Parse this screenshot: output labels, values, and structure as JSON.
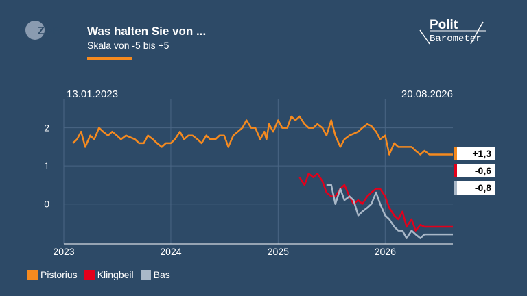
{
  "header": {
    "title": "Was halten Sie von ...",
    "subtitle": "Skala von -5 bis +5",
    "logo_left": "ZDF",
    "logo_right_top": "Polit",
    "logo_right_bottom": "Barometer"
  },
  "colors": {
    "background": "#2d4a67",
    "grid": "#4a6684",
    "pistorius": "#f58a1f",
    "klingbeil": "#e3001b",
    "bas": "#a9b8c8"
  },
  "chart_data": {
    "type": "line",
    "date_start_label": "13.01.2023",
    "date_end_label": "20.08.2026",
    "xlim": [
      "2023-01-01",
      "2026-08-20"
    ],
    "x_ticks": [
      "2023",
      "2024",
      "2025",
      "2026"
    ],
    "x_tick_dates": [
      "2023-01-01",
      "2024-01-01",
      "2025-01-01",
      "2026-01-01"
    ],
    "ylim": [
      -1.05,
      2.75
    ],
    "y_ticks": [
      "2",
      "1",
      "0"
    ],
    "y_tick_values": [
      2,
      1,
      0
    ],
    "grid": true,
    "legend_position": "bottom-left",
    "series": [
      {
        "name": "Pistorius",
        "color": "#f58a1f",
        "end_label": "+1,3",
        "points": [
          [
            "2023-02-01",
            1.6
          ],
          [
            "2023-02-15",
            1.7
          ],
          [
            "2023-03-01",
            1.9
          ],
          [
            "2023-03-15",
            1.5
          ],
          [
            "2023-04-01",
            1.8
          ],
          [
            "2023-04-15",
            1.7
          ],
          [
            "2023-05-01",
            2.0
          ],
          [
            "2023-05-15",
            1.9
          ],
          [
            "2023-06-01",
            1.8
          ],
          [
            "2023-06-15",
            1.9
          ],
          [
            "2023-07-01",
            1.8
          ],
          [
            "2023-07-15",
            1.7
          ],
          [
            "2023-08-01",
            1.8
          ],
          [
            "2023-09-01",
            1.7
          ],
          [
            "2023-09-15",
            1.6
          ],
          [
            "2023-10-01",
            1.6
          ],
          [
            "2023-10-15",
            1.8
          ],
          [
            "2023-11-01",
            1.7
          ],
          [
            "2023-11-15",
            1.6
          ],
          [
            "2023-12-01",
            1.5
          ],
          [
            "2023-12-15",
            1.6
          ],
          [
            "2024-01-01",
            1.6
          ],
          [
            "2024-01-15",
            1.7
          ],
          [
            "2024-02-01",
            1.9
          ],
          [
            "2024-02-15",
            1.7
          ],
          [
            "2024-03-01",
            1.8
          ],
          [
            "2024-03-15",
            1.8
          ],
          [
            "2024-04-01",
            1.7
          ],
          [
            "2024-04-15",
            1.6
          ],
          [
            "2024-05-01",
            1.8
          ],
          [
            "2024-05-15",
            1.7
          ],
          [
            "2024-06-01",
            1.7
          ],
          [
            "2024-06-15",
            1.8
          ],
          [
            "2024-07-01",
            1.8
          ],
          [
            "2024-07-15",
            1.5
          ],
          [
            "2024-08-01",
            1.8
          ],
          [
            "2024-09-01",
            2.0
          ],
          [
            "2024-09-15",
            2.2
          ],
          [
            "2024-10-01",
            2.0
          ],
          [
            "2024-10-15",
            2.0
          ],
          [
            "2024-11-01",
            1.7
          ],
          [
            "2024-11-15",
            1.9
          ],
          [
            "2024-11-22",
            1.7
          ],
          [
            "2024-12-01",
            2.1
          ],
          [
            "2024-12-15",
            1.9
          ],
          [
            "2025-01-01",
            2.2
          ],
          [
            "2025-01-15",
            2.0
          ],
          [
            "2025-02-01",
            2.0
          ],
          [
            "2025-02-15",
            2.3
          ],
          [
            "2025-03-01",
            2.2
          ],
          [
            "2025-03-15",
            2.3
          ],
          [
            "2025-04-01",
            2.1
          ],
          [
            "2025-04-15",
            2.0
          ],
          [
            "2025-05-01",
            2.0
          ],
          [
            "2025-05-15",
            2.1
          ],
          [
            "2025-06-01",
            2.0
          ],
          [
            "2025-06-15",
            1.8
          ],
          [
            "2025-07-01",
            2.2
          ],
          [
            "2025-07-15",
            1.8
          ],
          [
            "2025-08-01",
            1.5
          ],
          [
            "2025-08-15",
            1.7
          ],
          [
            "2025-09-01",
            1.8
          ],
          [
            "2025-10-01",
            1.9
          ],
          [
            "2025-10-15",
            2.0
          ],
          [
            "2025-11-01",
            2.1
          ],
          [
            "2025-11-15",
            2.05
          ],
          [
            "2025-12-01",
            1.9
          ],
          [
            "2025-12-15",
            1.7
          ],
          [
            "2026-01-01",
            1.8
          ],
          [
            "2026-01-15",
            1.3
          ],
          [
            "2026-02-01",
            1.6
          ],
          [
            "2026-02-15",
            1.5
          ],
          [
            "2026-03-01",
            1.5
          ],
          [
            "2026-04-01",
            1.5
          ],
          [
            "2026-04-15",
            1.4
          ],
          [
            "2026-05-01",
            1.3
          ],
          [
            "2026-05-15",
            1.4
          ],
          [
            "2026-06-01",
            1.3
          ],
          [
            "2026-07-01",
            1.3
          ],
          [
            "2026-08-01",
            1.3
          ],
          [
            "2026-08-20",
            1.3
          ]
        ]
      },
      {
        "name": "Klingbeil",
        "color": "#e3001b",
        "end_label": "-0,6",
        "points": [
          [
            "2025-03-15",
            0.7
          ],
          [
            "2025-04-01",
            0.5
          ],
          [
            "2025-04-15",
            0.8
          ],
          [
            "2025-05-01",
            0.7
          ],
          [
            "2025-05-15",
            0.8
          ],
          [
            "2025-06-01",
            0.6
          ],
          [
            "2025-06-15",
            0.3
          ],
          [
            "2025-07-01",
            0.2
          ],
          [
            "2025-07-15",
            0.2
          ],
          [
            "2025-08-01",
            0.4
          ],
          [
            "2025-08-15",
            0.5
          ],
          [
            "2025-09-01",
            0.2
          ],
          [
            "2025-09-15",
            0.0
          ],
          [
            "2025-10-01",
            0.1
          ],
          [
            "2025-10-15",
            0.0
          ],
          [
            "2025-11-01",
            0.2
          ],
          [
            "2025-11-15",
            0.3
          ],
          [
            "2025-12-01",
            0.4
          ],
          [
            "2025-12-15",
            0.4
          ],
          [
            "2026-01-01",
            0.2
          ],
          [
            "2026-01-15",
            -0.1
          ],
          [
            "2026-02-01",
            -0.3
          ],
          [
            "2026-02-15",
            -0.4
          ],
          [
            "2026-03-01",
            -0.2
          ],
          [
            "2026-03-15",
            -0.6
          ],
          [
            "2026-04-01",
            -0.4
          ],
          [
            "2026-04-15",
            -0.7
          ],
          [
            "2026-05-01",
            -0.55
          ],
          [
            "2026-05-15",
            -0.6
          ],
          [
            "2026-06-01",
            -0.6
          ],
          [
            "2026-08-20",
            -0.6
          ]
        ]
      },
      {
        "name": "Bas",
        "color": "#a9b8c8",
        "end_label": "-0,8",
        "points": [
          [
            "2025-06-15",
            0.5
          ],
          [
            "2025-07-01",
            0.5
          ],
          [
            "2025-07-15",
            0.0
          ],
          [
            "2025-08-01",
            0.4
          ],
          [
            "2025-08-15",
            0.1
          ],
          [
            "2025-09-01",
            0.2
          ],
          [
            "2025-09-15",
            0.1
          ],
          [
            "2025-10-01",
            -0.3
          ],
          [
            "2025-10-15",
            -0.2
          ],
          [
            "2025-11-01",
            -0.1
          ],
          [
            "2025-11-15",
            0.0
          ],
          [
            "2025-12-01",
            0.3
          ],
          [
            "2025-12-15",
            0.0
          ],
          [
            "2026-01-01",
            -0.3
          ],
          [
            "2026-01-15",
            -0.4
          ],
          [
            "2026-02-01",
            -0.6
          ],
          [
            "2026-02-15",
            -0.7
          ],
          [
            "2026-03-01",
            -0.7
          ],
          [
            "2026-03-15",
            -0.9
          ],
          [
            "2026-04-01",
            -0.7
          ],
          [
            "2026-04-15",
            -0.8
          ],
          [
            "2026-05-01",
            -0.9
          ],
          [
            "2026-05-15",
            -0.8
          ],
          [
            "2026-06-01",
            -0.8
          ],
          [
            "2026-08-20",
            -0.8
          ]
        ]
      }
    ]
  }
}
